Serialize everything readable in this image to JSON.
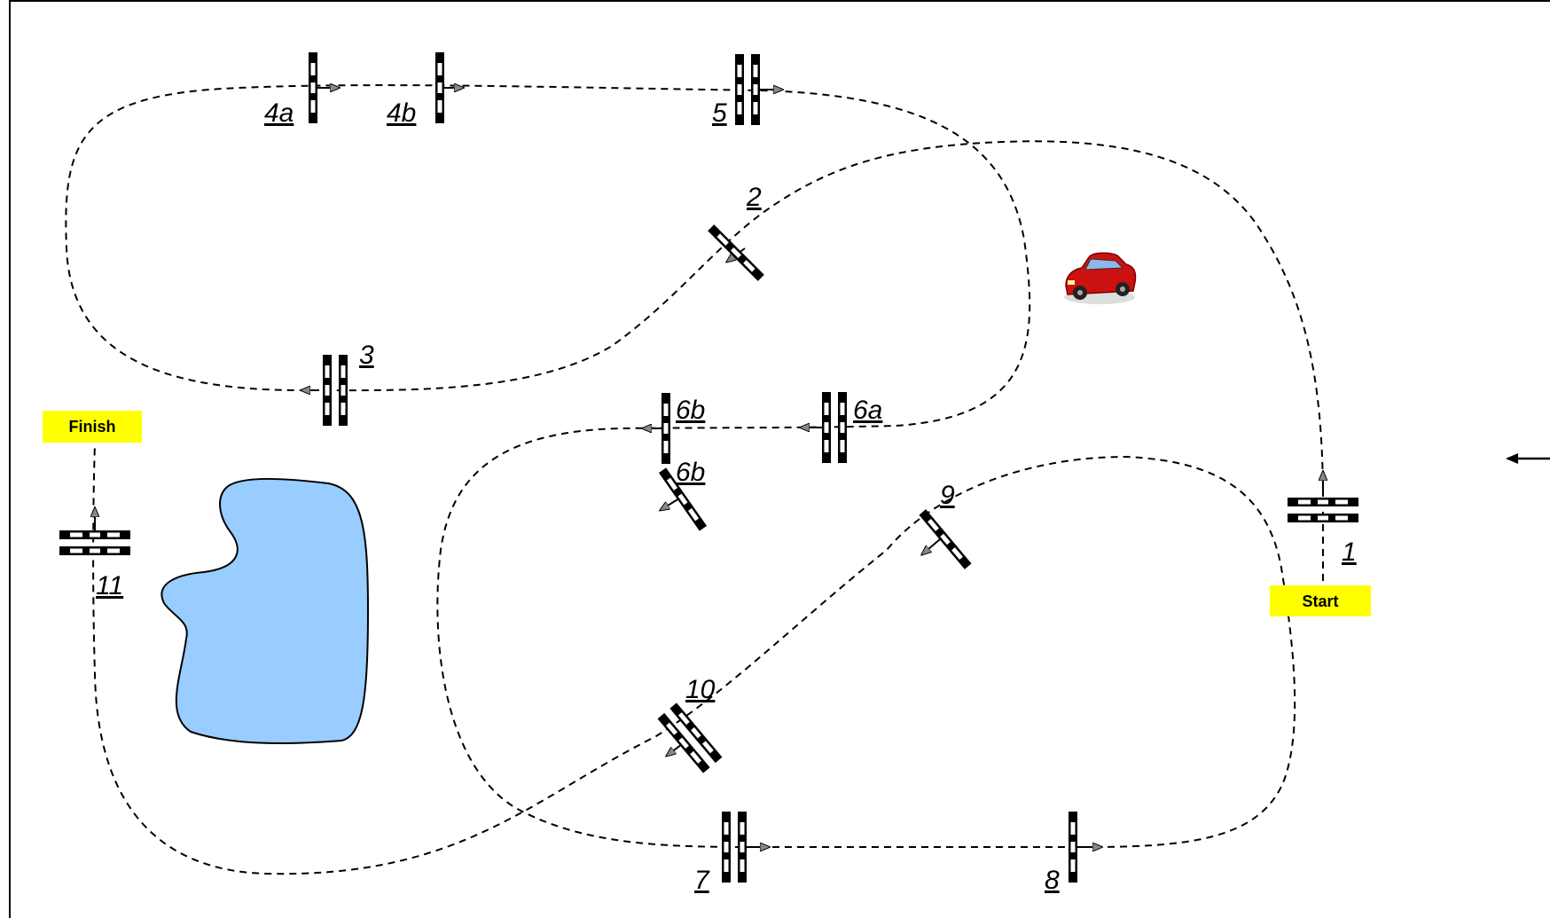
{
  "labels": {
    "start": "Start",
    "finish": "Finish"
  },
  "gates": {
    "g1": "1",
    "g2": "2",
    "g3": "3",
    "g4a": "4a",
    "g4b": "4b",
    "g5": "5",
    "g6a": "6a",
    "g6b_top": "6b",
    "g6b_bottom": "6b",
    "g7": "7",
    "g8": "8",
    "g9": "9",
    "g10": "10",
    "g11": "11"
  },
  "colors": {
    "tag": "#ffff00",
    "lake": "#99ccff",
    "car": "#cc1111"
  }
}
